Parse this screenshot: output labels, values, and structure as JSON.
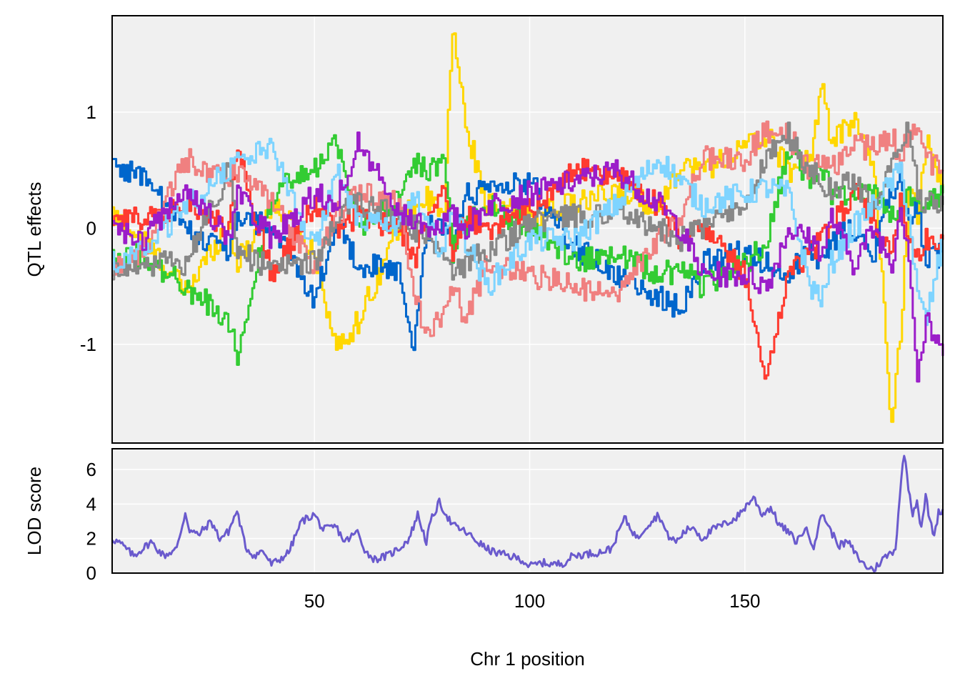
{
  "chart_data": [
    {
      "type": "line",
      "panel": "top",
      "ylabel": "QTL effects",
      "xlabel": "",
      "xlim": [
        3,
        196
      ],
      "ylim": [
        -1.85,
        1.83
      ],
      "x_ticks": [
        50,
        100,
        150
      ],
      "y_ticks": [
        -1,
        0,
        1
      ],
      "y_tick_labels": [
        "-1",
        "0",
        "1"
      ],
      "grid": true,
      "background": "#f0f0f0",
      "x": [
        3,
        10,
        20,
        30,
        32,
        40,
        50,
        55,
        60,
        70,
        73,
        76,
        80,
        82,
        85,
        90,
        100,
        110,
        120,
        130,
        135,
        140,
        150,
        155,
        160,
        165,
        168,
        170,
        175,
        180,
        184,
        186,
        188,
        190,
        192,
        196
      ],
      "series": [
        {
          "color": "#ffd700",
          "values": [
            0.1,
            -0.1,
            -0.55,
            0.05,
            -0.3,
            0.2,
            -0.2,
            -1.05,
            -0.8,
            0.05,
            0.2,
            0.25,
            0.1,
            1.75,
            0.9,
            0.2,
            0.1,
            0.2,
            0.3,
            0.2,
            0.55,
            0.5,
            0.7,
            0.8,
            0.5,
            0.6,
            1.25,
            0.7,
            0.95,
            0.5,
            -1.7,
            -0.9,
            0.3,
            0.1,
            0.8,
            0.3
          ]
        },
        {
          "color": "#0066cc",
          "values": [
            0.55,
            0.45,
            0.0,
            -0.2,
            0.1,
            0.0,
            -0.6,
            0.05,
            -0.3,
            -0.4,
            -1.1,
            0.0,
            0.05,
            -0.2,
            0.3,
            0.3,
            0.4,
            -0.15,
            -0.4,
            -0.6,
            -0.7,
            -0.3,
            -0.2,
            -0.3,
            -0.4,
            -0.2,
            -0.3,
            -0.1,
            0.0,
            -0.2,
            0.3,
            0.55,
            0.0,
            0.2,
            -0.3,
            -0.2
          ]
        },
        {
          "color": "#33cc33",
          "values": [
            -0.2,
            -0.25,
            -0.5,
            -0.8,
            -1.1,
            0.3,
            0.5,
            0.75,
            0.0,
            0.3,
            0.6,
            0.5,
            0.6,
            -0.2,
            0.0,
            0.2,
            0.0,
            -0.3,
            -0.2,
            -0.4,
            -0.35,
            -0.5,
            -0.3,
            -0.1,
            0.7,
            0.4,
            0.5,
            0.3,
            0.3,
            0.3,
            0.1,
            0.2,
            0.3,
            0.3,
            0.2,
            0.3
          ]
        },
        {
          "color": "#ff3b30",
          "values": [
            0.05,
            0.1,
            0.2,
            0.0,
            0.7,
            -0.4,
            0.2,
            0.0,
            0.1,
            0.0,
            -0.3,
            0.1,
            0.3,
            -0.2,
            0.1,
            0.0,
            0.15,
            0.5,
            0.45,
            0.2,
            -0.1,
            0.0,
            -0.4,
            -1.3,
            -0.4,
            -0.2,
            -0.1,
            0.0,
            0.3,
            0.1,
            -0.3,
            0.3,
            -0.1,
            -0.2,
            -0.1,
            -0.1
          ]
        },
        {
          "color": "#f08080",
          "values": [
            -0.35,
            -0.2,
            0.6,
            0.4,
            0.5,
            0.2,
            -0.3,
            0.1,
            0.3,
            0.2,
            -0.6,
            -0.9,
            -0.7,
            -0.5,
            -0.8,
            -0.3,
            -0.4,
            -0.5,
            -0.6,
            -0.1,
            0.1,
            0.6,
            0.6,
            0.85,
            0.8,
            0.5,
            0.6,
            0.5,
            0.7,
            0.7,
            0.8,
            0.6,
            0.8,
            0.9,
            0.6,
            0.5
          ]
        },
        {
          "color": "#888888",
          "values": [
            -0.35,
            -0.3,
            -0.3,
            0.5,
            -0.2,
            -0.35,
            -0.3,
            0.1,
            0.2,
            0.1,
            0.0,
            -0.1,
            -0.2,
            -0.4,
            -0.3,
            -0.2,
            0.05,
            0.1,
            0.15,
            0.0,
            -0.1,
            0.0,
            0.2,
            0.6,
            0.8,
            0.5,
            0.4,
            0.3,
            0.4,
            0.2,
            0.5,
            0.7,
            0.85,
            0.3,
            0.2,
            0.2
          ]
        },
        {
          "color": "#7fd4ff",
          "values": [
            -0.3,
            -0.2,
            0.2,
            0.5,
            0.6,
            0.7,
            -0.2,
            0.5,
            0.1,
            0.0,
            0.3,
            0.0,
            -0.2,
            0.2,
            -0.1,
            -0.5,
            -0.1,
            -0.1,
            0.2,
            0.6,
            0.4,
            0.2,
            0.3,
            0.35,
            0.3,
            -0.5,
            -0.6,
            -0.3,
            0.0,
            0.2,
            0.4,
            0.5,
            0.1,
            -0.6,
            -0.8,
            -0.1
          ]
        },
        {
          "color": "#9b1dc9",
          "values": [
            0.0,
            -0.1,
            0.35,
            -0.1,
            0.3,
            -0.1,
            0.3,
            0.2,
            0.75,
            0.1,
            0.1,
            0.0,
            0.05,
            0.1,
            0.0,
            0.2,
            0.3,
            0.4,
            0.5,
            0.2,
            0.0,
            -0.4,
            -0.4,
            -0.5,
            0.0,
            -0.1,
            -0.2,
            0.1,
            -0.3,
            0.0,
            -0.3,
            0.2,
            -0.2,
            -1.3,
            -0.8,
            -1.1
          ]
        }
      ]
    },
    {
      "type": "line",
      "panel": "bottom",
      "xlabel": "Chr 1 position",
      "ylabel": "LOD score",
      "xlim": [
        3,
        196
      ],
      "ylim": [
        0,
        7.2
      ],
      "x_ticks": [
        50,
        100,
        150
      ],
      "x_tick_labels": [
        "50",
        "100",
        "150"
      ],
      "y_ticks": [
        0,
        2,
        4,
        6
      ],
      "y_tick_labels": [
        "0",
        "2",
        "4",
        "6"
      ],
      "grid": true,
      "background": "#f0f0f0",
      "series": [
        {
          "color": "#6a5acd",
          "x": [
            3,
            5,
            8,
            12,
            15,
            18,
            20,
            21,
            23,
            26,
            28,
            30,
            32,
            34,
            36,
            38,
            40,
            42,
            44,
            47,
            50,
            52,
            55,
            57,
            60,
            62,
            64,
            67,
            70,
            72,
            74,
            76,
            77,
            79,
            82,
            85,
            88,
            90,
            92,
            95,
            98,
            100,
            103,
            106,
            108,
            110,
            113,
            116,
            119,
            120,
            122,
            125,
            127,
            130,
            132,
            134,
            136,
            138,
            140,
            143,
            145,
            148,
            150,
            152,
            154,
            156,
            158,
            160,
            162,
            164,
            166,
            168,
            170,
            172,
            174,
            176,
            178,
            180,
            182,
            184,
            185,
            186,
            187,
            188,
            189,
            190,
            191,
            192,
            193,
            194,
            195,
            196
          ],
          "values": [
            2.0,
            1.7,
            1.0,
            1.8,
            1.0,
            1.4,
            3.5,
            2.5,
            2.2,
            3.0,
            2.0,
            2.4,
            3.6,
            1.5,
            1.0,
            1.3,
            0.5,
            0.8,
            1.2,
            3.0,
            3.4,
            2.5,
            2.7,
            1.8,
            2.4,
            1.2,
            0.8,
            1.0,
            1.5,
            2.0,
            3.4,
            1.8,
            3.0,
            4.1,
            2.8,
            2.4,
            1.8,
            1.4,
            1.2,
            1.0,
            0.8,
            0.4,
            0.6,
            0.5,
            0.6,
            1.0,
            1.1,
            1.2,
            1.4,
            2.0,
            3.2,
            2.0,
            2.7,
            3.4,
            2.2,
            1.8,
            2.4,
            2.7,
            2.0,
            2.6,
            2.8,
            3.2,
            3.8,
            4.4,
            3.4,
            3.8,
            2.8,
            2.4,
            1.8,
            2.6,
            1.6,
            3.5,
            2.4,
            1.6,
            1.8,
            1.0,
            0.4,
            0.2,
            0.8,
            1.2,
            1.4,
            4.5,
            7.0,
            5.0,
            3.5,
            4.2,
            2.5,
            4.5,
            3.0,
            2.2,
            3.5,
            3.7
          ]
        }
      ]
    }
  ]
}
